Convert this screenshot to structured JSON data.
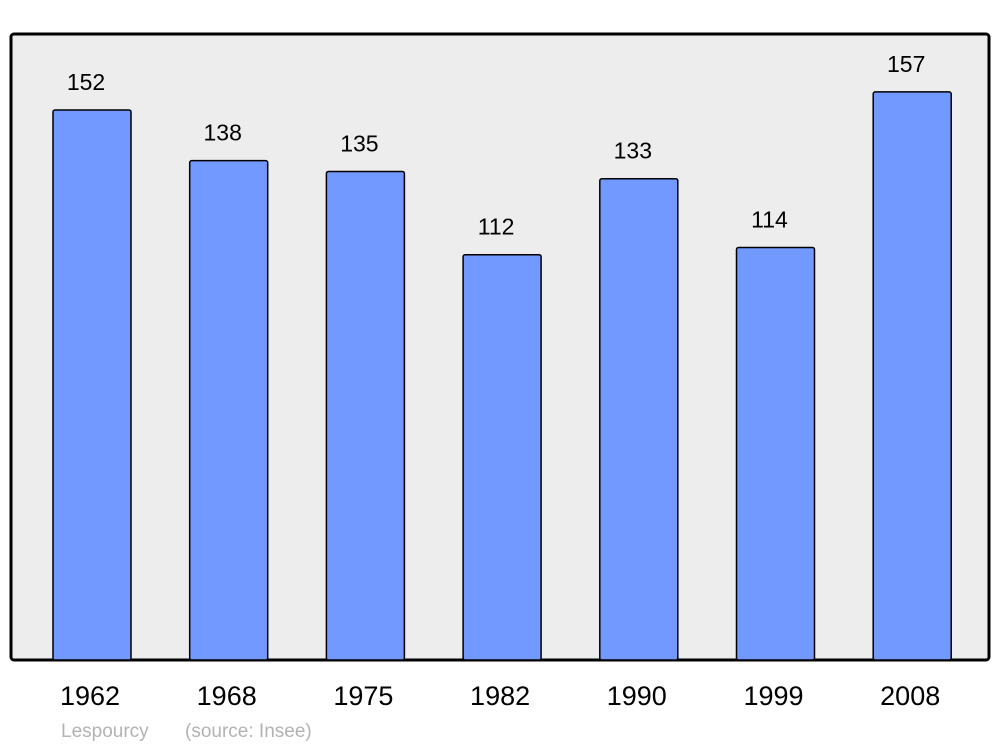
{
  "chart_data": {
    "type": "bar",
    "title": "",
    "xlabel": "",
    "ylabel": "",
    "categories": [
      "1962",
      "1968",
      "1975",
      "1982",
      "1990",
      "1999",
      "2008"
    ],
    "values": [
      152,
      138,
      135,
      112,
      133,
      114,
      157
    ],
    "ylim": [
      0,
      173
    ],
    "grid": false,
    "data_labels": true,
    "colors": {
      "bar": "#7299ff",
      "plot_background": "#ededed",
      "border": "#000000",
      "source_text": "#b3b3b3"
    }
  },
  "footer": {
    "commune": "Lespourcy",
    "source": "(source: Insee)"
  }
}
